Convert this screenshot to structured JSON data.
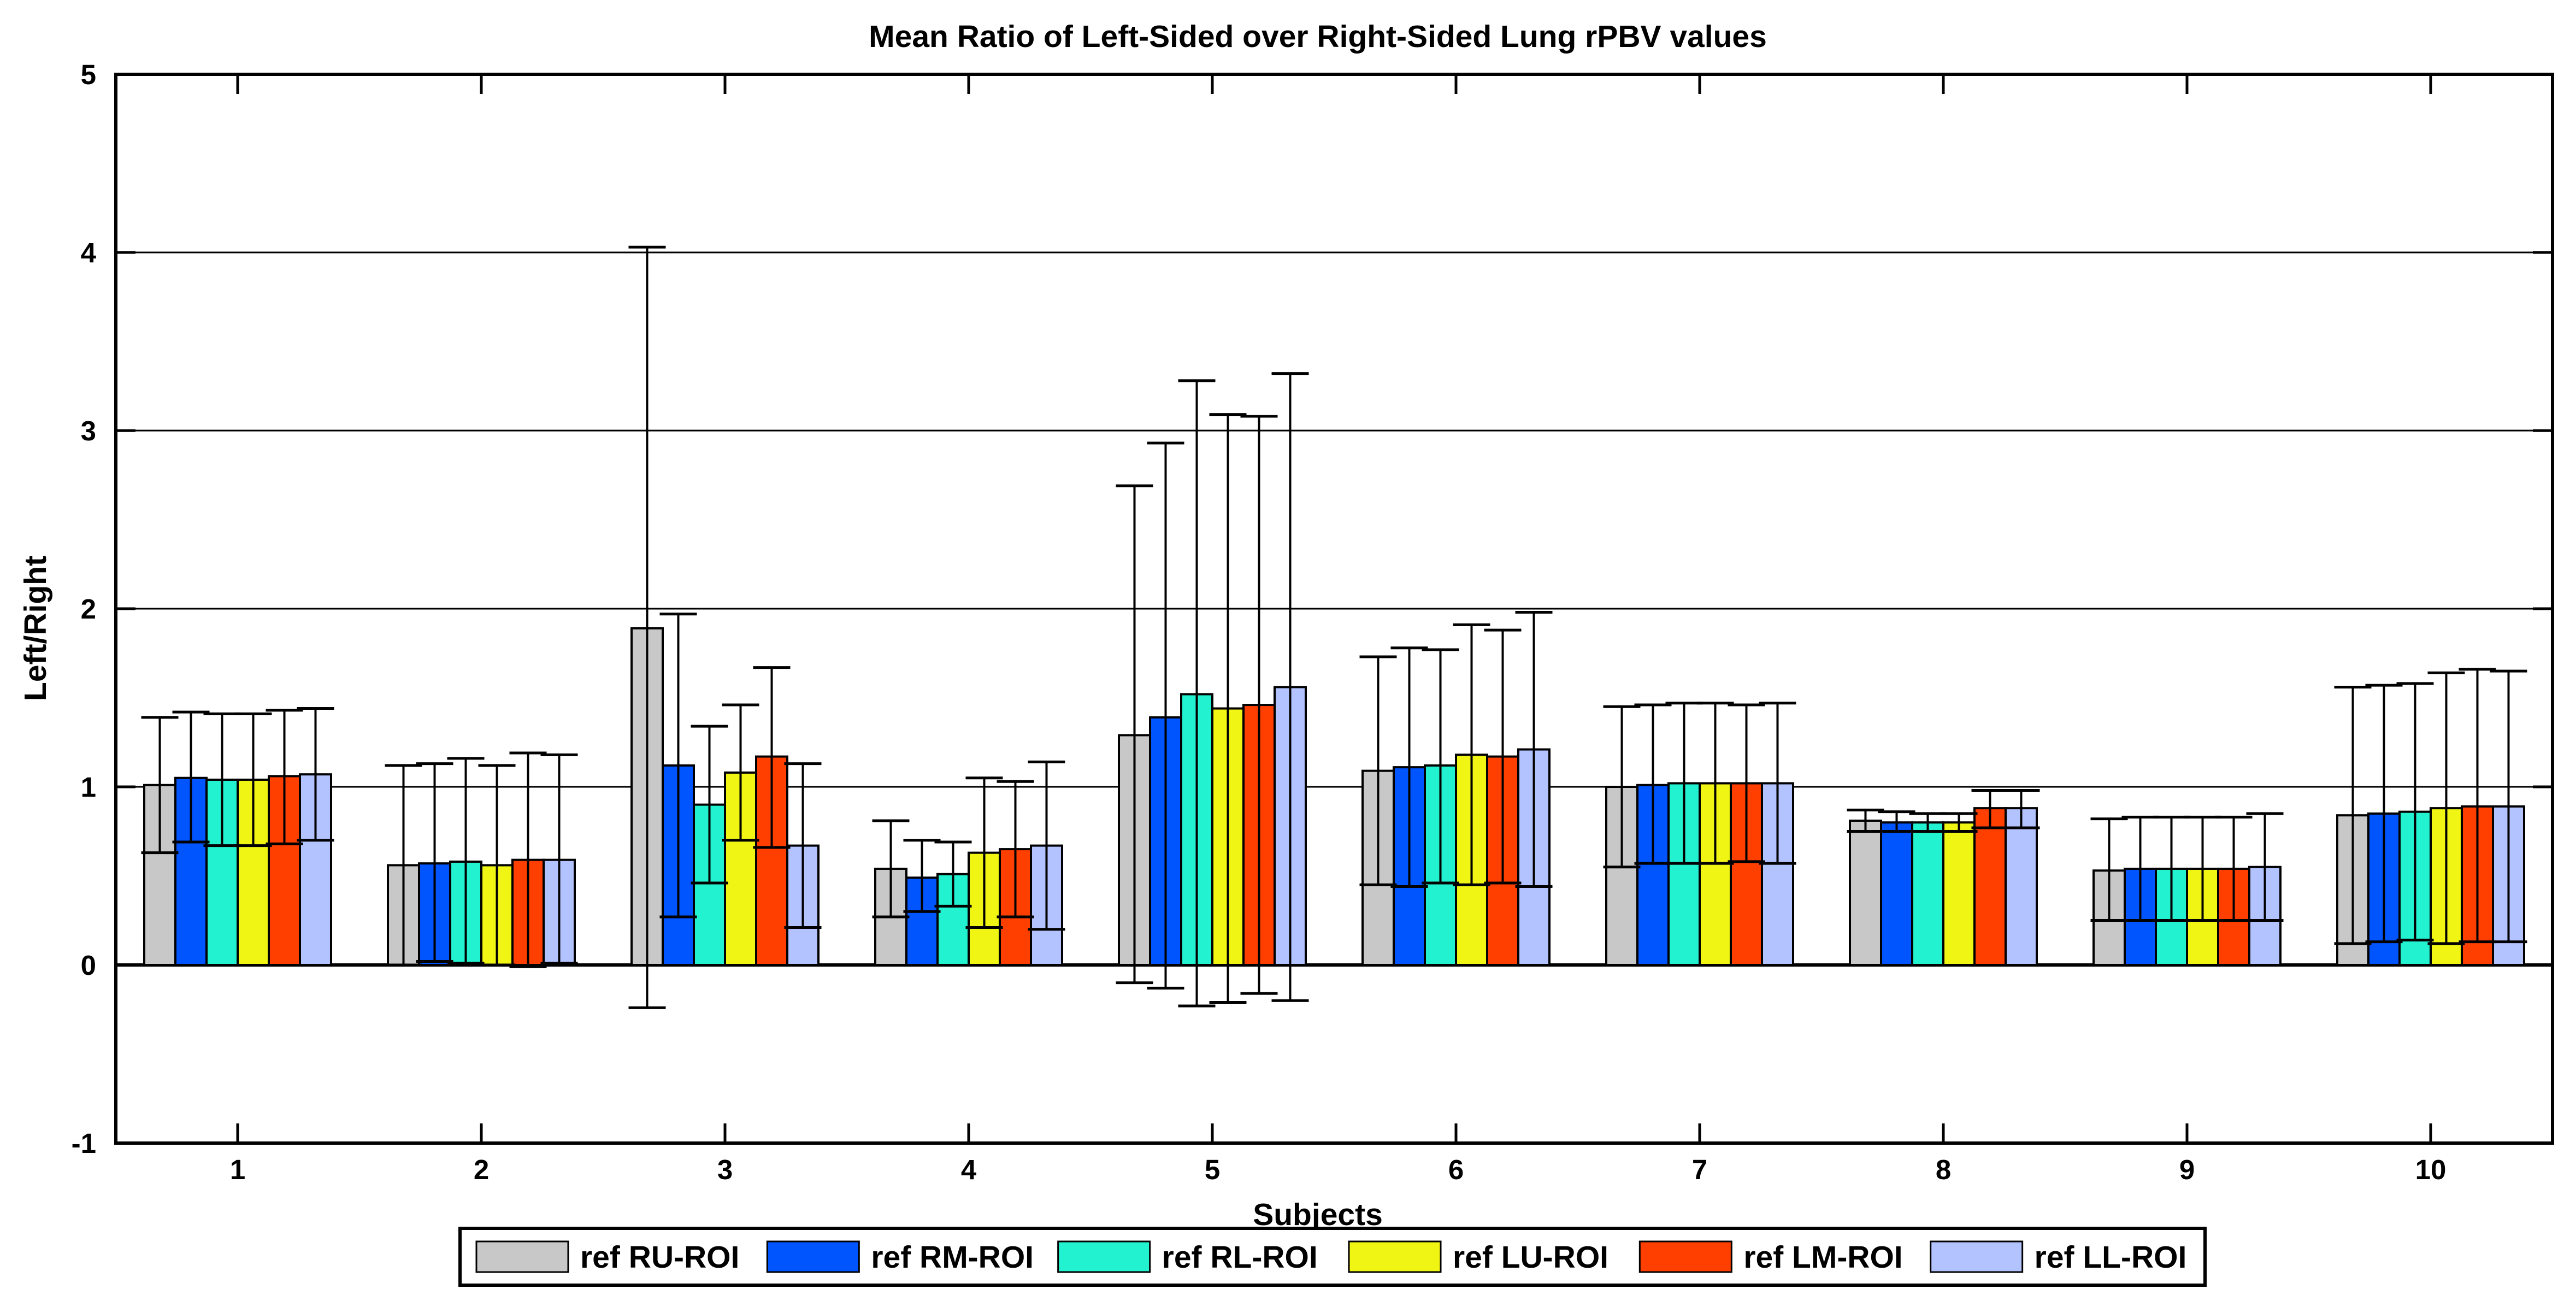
{
  "chart_data": {
    "type": "bar",
    "title": "Mean Ratio of Left-Sided over Right-Sided Lung rPBV values",
    "xlabel": "Subjects",
    "ylabel": "Left/Right",
    "ylim": [
      -1,
      5
    ],
    "yticks": [
      "-1",
      "0",
      "1",
      "2",
      "3",
      "4",
      "5"
    ],
    "categories": [
      "1",
      "2",
      "3",
      "4",
      "5",
      "6",
      "7",
      "8",
      "9",
      "10"
    ],
    "grid": "horizontal",
    "legend_position": "bottom",
    "series": [
      {
        "name": "ref RU-ROI",
        "color": "#c8c8c8",
        "values": [
          1.01,
          0.56,
          1.89,
          0.54,
          1.29,
          1.09,
          1.0,
          0.81,
          0.53,
          0.84
        ],
        "err_low": [
          0.63,
          0.0,
          -0.24,
          0.27,
          -0.1,
          0.45,
          0.55,
          0.75,
          0.25,
          0.12
        ],
        "err_high": [
          1.39,
          1.12,
          4.03,
          0.81,
          2.69,
          1.73,
          1.45,
          0.87,
          0.82,
          1.56
        ]
      },
      {
        "name": "ref RM-ROI",
        "color": "#0055ff",
        "values": [
          1.05,
          0.57,
          1.12,
          0.49,
          1.39,
          1.11,
          1.01,
          0.8,
          0.54,
          0.85
        ],
        "err_low": [
          0.69,
          0.02,
          0.27,
          0.3,
          -0.13,
          0.44,
          0.57,
          0.75,
          0.25,
          0.13
        ],
        "err_high": [
          1.42,
          1.13,
          1.97,
          0.7,
          2.93,
          1.78,
          1.46,
          0.86,
          0.83,
          1.57
        ]
      },
      {
        "name": "ref RL-ROI",
        "color": "#22f2d0",
        "values": [
          1.04,
          0.58,
          0.9,
          0.51,
          1.52,
          1.12,
          1.02,
          0.8,
          0.54,
          0.86
        ],
        "err_low": [
          0.67,
          0.01,
          0.46,
          0.33,
          -0.23,
          0.46,
          0.57,
          0.75,
          0.25,
          0.14
        ],
        "err_high": [
          1.41,
          1.16,
          1.34,
          0.69,
          3.28,
          1.77,
          1.47,
          0.85,
          0.83,
          1.58
        ]
      },
      {
        "name": "ref LU-ROI",
        "color": "#f0f514",
        "values": [
          1.04,
          0.56,
          1.08,
          0.63,
          1.44,
          1.18,
          1.02,
          0.8,
          0.54,
          0.88
        ],
        "err_low": [
          0.67,
          0.0,
          0.7,
          0.21,
          -0.21,
          0.45,
          0.57,
          0.75,
          0.25,
          0.12
        ],
        "err_high": [
          1.41,
          1.12,
          1.46,
          1.05,
          3.09,
          1.91,
          1.47,
          0.85,
          0.83,
          1.64
        ]
      },
      {
        "name": "ref LM-ROI",
        "color": "#ff3f00",
        "values": [
          1.06,
          0.59,
          1.17,
          0.65,
          1.46,
          1.17,
          1.02,
          0.88,
          0.54,
          0.89
        ],
        "err_low": [
          0.68,
          -0.01,
          0.66,
          0.27,
          -0.16,
          0.46,
          0.58,
          0.77,
          0.25,
          0.13
        ],
        "err_high": [
          1.43,
          1.19,
          1.67,
          1.03,
          3.08,
          1.88,
          1.46,
          0.98,
          0.83,
          1.66
        ]
      },
      {
        "name": "ref LL-ROI",
        "color": "#b3c3ff",
        "values": [
          1.07,
          0.59,
          0.67,
          0.67,
          1.56,
          1.21,
          1.02,
          0.88,
          0.55,
          0.89
        ],
        "err_low": [
          0.7,
          0.01,
          0.21,
          0.2,
          -0.2,
          0.44,
          0.57,
          0.77,
          0.25,
          0.13
        ],
        "err_high": [
          1.44,
          1.18,
          1.13,
          1.14,
          3.32,
          1.98,
          1.47,
          0.98,
          0.85,
          1.65
        ]
      }
    ]
  }
}
